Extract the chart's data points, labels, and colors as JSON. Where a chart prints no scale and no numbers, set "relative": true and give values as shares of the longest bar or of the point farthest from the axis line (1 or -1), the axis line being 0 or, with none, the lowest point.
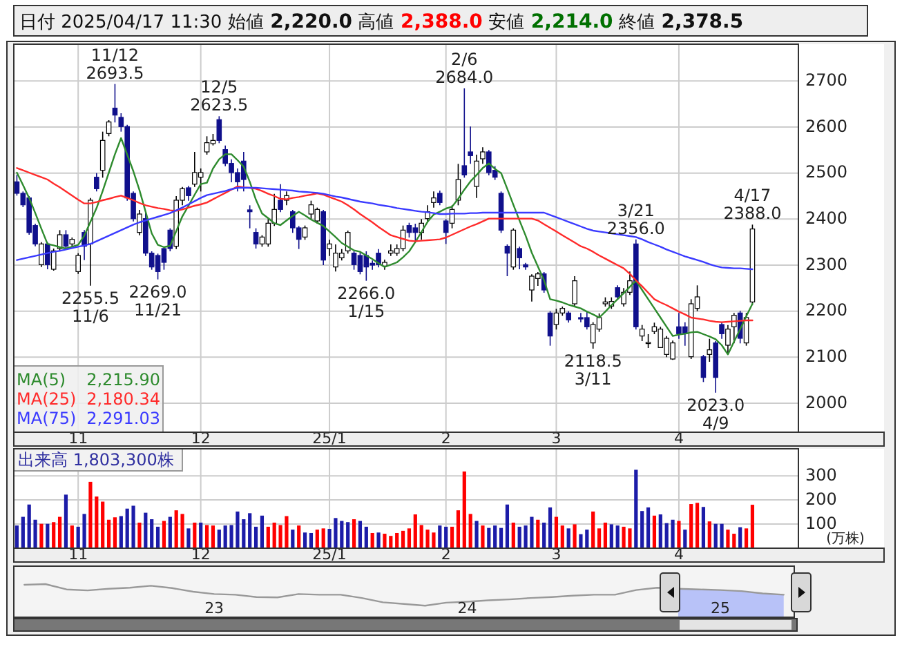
{
  "chart_data": [
    {
      "type": "candlestick",
      "title": "日付 2025/04/17 11:30 始値 2,220.0 高値 2,388.0 安値 2,214.0 終値 2,378.5",
      "grid": true,
      "legend": "bottom left",
      "colors": [
        "#10108c",
        "#10108c",
        "#10108c",
        "#10108c",
        "#ffffff",
        "#10108c",
        "#ffffff",
        "#ffffff",
        "#10108c",
        "#ffffff",
        "#ffffff",
        "#10108c",
        "#ffffff",
        "#10108c",
        "#ffffff",
        "#ffffff",
        "#10108c",
        "#10108c",
        "#10108c",
        "#10108c",
        "#ffffff",
        "#10108c",
        "#10108c",
        "#10108c",
        "#10108c",
        "#10108c",
        "#ffffff",
        "#ffffff",
        "#10108c",
        "#ffffff",
        "#ffffff",
        "#ffffff",
        "#ffffff",
        "#10108c",
        "#10108c",
        "#10108c",
        "#10108c",
        "#10108c",
        "#10108c",
        "#10108c",
        "#ffffff",
        "#ffffff",
        "#ffffff",
        "#10108c",
        "#ffffff",
        "#10108c",
        "#10108c",
        "#ffffff",
        "#ffffff",
        "#ffffff",
        "#10108c",
        "#ffffff",
        "#ffffff",
        "#ffffff",
        "#ffffff",
        "#10108c",
        "#10108c",
        "#10108c",
        "#10108c",
        "#10108c",
        "#ffffff",
        "#ffffff",
        "#ffffff",
        "#ffffff",
        "#10108c",
        "#10108c",
        "#ffffff",
        "#ffffff",
        "#ffffff",
        "#10108c",
        "#10108c",
        "#ffffff",
        "#ffffff",
        "#10108c",
        "#10108c",
        "#ffffff",
        "#ffffff",
        "#10108c",
        "#10108c",
        "#10108c",
        "#10108c",
        "#ffffff",
        "#10108c",
        "#10108c",
        "#ffffff",
        "#ffffff",
        "#10108c",
        "#10108c",
        "#ffffff",
        "#ffffff",
        "#10108c",
        "#ffffff",
        "#10108c",
        "#10108c",
        "#ffffff",
        "#ffffff",
        "#ffffff",
        "#ffffff",
        "#10108c",
        "#ffffff",
        "#ffffff",
        "#10108c",
        "#ffffff",
        "#ffffff",
        "#ffffff",
        "#ffffff",
        "#ffffff",
        "#ffffff",
        "#10108c",
        "#10108c",
        "#ffffff",
        "#ffffff",
        "#10108c",
        "#ffffff",
        "#10108c",
        "#10108c",
        "#ffffff",
        "#ffffff",
        "#10108c",
        "#ffffff",
        "#ffffff",
        null,
        null,
        null,
        null,
        null,
        null,
        null
      ],
      "categories": [
        null,
        null,
        null,
        null,
        null,
        null,
        null,
        null,
        null,
        null,
        "11",
        null,
        null,
        null,
        null,
        null,
        null,
        null,
        null,
        null,
        null,
        null,
        null,
        null,
        null,
        null,
        null,
        null,
        null,
        null,
        "12",
        null,
        null,
        null,
        null,
        null,
        null,
        null,
        null,
        null,
        null,
        null,
        null,
        null,
        null,
        null,
        null,
        null,
        null,
        null,
        null,
        "25/1",
        null,
        null,
        null,
        null,
        null,
        null,
        null,
        null,
        null,
        null,
        null,
        null,
        null,
        null,
        null,
        null,
        null,
        null,
        "2",
        null,
        null,
        null,
        null,
        null,
        null,
        null,
        null,
        null,
        null,
        null,
        null,
        null,
        null,
        null,
        null,
        null,
        "3",
        null,
        null,
        null,
        null,
        null,
        null,
        null,
        null,
        null,
        null,
        null,
        null,
        null,
        null,
        null,
        null,
        null,
        null,
        null,
        "4",
        null,
        null,
        null,
        null,
        null,
        null,
        null,
        null,
        null,
        null,
        null,
        null,
        null,
        null,
        null,
        null,
        null,
        null,
        null
      ],
      "ylim": [
        1937,
        2780
      ],
      "yticks": [
        2000,
        2100,
        2200,
        2300,
        2400,
        2500,
        2600,
        2700
      ],
      "ohlc": [
        [
          2481,
          2496,
          2451,
          2456
        ],
        [
          2456,
          2460,
          2426,
          2431
        ],
        [
          2446,
          2450,
          2366,
          2371
        ],
        [
          2386,
          2390,
          2341,
          2346
        ],
        [
          2301,
          2350,
          2296,
          2346
        ],
        [
          2346,
          2350,
          2291,
          2301
        ],
        [
          2291,
          2336,
          2288,
          2331
        ],
        [
          2336,
          2376,
          2330,
          2366
        ],
        [
          2366,
          2376,
          2336,
          2341
        ],
        [
          2346,
          2360,
          2340,
          2356
        ],
        [
          2286,
          2326,
          2281,
          2321
        ],
        [
          2371,
          2376,
          2311,
          2341
        ],
        [
          2346,
          2446,
          2255.5,
          2441
        ],
        [
          2491,
          2500,
          2460,
          2466
        ],
        [
          2506,
          2590,
          2490,
          2571
        ],
        [
          2586,
          2615,
          2580,
          2611
        ],
        [
          2641,
          2693.5,
          2610,
          2626
        ],
        [
          2621,
          2630,
          2590,
          2601
        ],
        [
          2601,
          2605,
          2440,
          2446
        ],
        [
          2456,
          2460,
          2395,
          2401
        ],
        [
          2371,
          2420,
          2365,
          2411
        ],
        [
          2401,
          2415,
          2320,
          2326
        ],
        [
          2326,
          2330,
          2290,
          2296
        ],
        [
          2321,
          2325,
          2269,
          2286
        ],
        [
          2336,
          2340,
          2290,
          2306
        ],
        [
          2376,
          2380,
          2330,
          2336
        ],
        [
          2341,
          2450,
          2335,
          2441
        ],
        [
          2441,
          2470,
          2430,
          2466
        ],
        [
          2468,
          2472,
          2440,
          2451
        ],
        [
          2476,
          2546,
          2470,
          2501
        ],
        [
          2491,
          2510,
          2460,
          2501
        ],
        [
          2546,
          2580,
          2540,
          2566
        ],
        [
          2564,
          2585,
          2560,
          2571
        ],
        [
          2616,
          2623.5,
          2565,
          2571
        ],
        [
          2551,
          2560,
          2515,
          2521
        ],
        [
          2521,
          2530,
          2480,
          2501
        ],
        [
          2501,
          2510,
          2460,
          2481
        ],
        [
          2526,
          2546,
          2460,
          2486
        ],
        [
          2420,
          2430,
          2380,
          2416
        ],
        [
          2371,
          2380,
          2336,
          2346
        ],
        [
          2346,
          2365,
          2340,
          2361
        ],
        [
          2346,
          2400,
          2340,
          2391
        ],
        [
          2391,
          2455,
          2385,
          2421
        ],
        [
          2441,
          2476,
          2415,
          2421
        ],
        [
          2441,
          2460,
          2430,
          2451
        ],
        [
          2416,
          2420,
          2370,
          2381
        ],
        [
          2381,
          2385,
          2335,
          2356
        ],
        [
          2361,
          2386,
          2355,
          2381
        ],
        [
          2411,
          2440,
          2400,
          2431
        ],
        [
          2396,
          2425,
          2390,
          2421
        ],
        [
          2416,
          2420,
          2300,
          2311
        ],
        [
          2336,
          2355,
          2320,
          2346
        ],
        [
          2296,
          2345,
          2286,
          2326
        ],
        [
          2316,
          2335,
          2310,
          2326
        ],
        [
          2331,
          2375,
          2325,
          2371
        ],
        [
          2326,
          2330,
          2290,
          2301
        ],
        [
          2321,
          2330,
          2280,
          2286
        ],
        [
          2321,
          2330,
          2266,
          2296
        ],
        [
          2304,
          2310,
          2290,
          2300
        ],
        [
          2326,
          2335,
          2295,
          2301
        ],
        [
          2298,
          2312,
          2290,
          2306
        ],
        [
          2326,
          2345,
          2320,
          2331
        ],
        [
          2326,
          2345,
          2320,
          2336
        ],
        [
          2336,
          2386,
          2330,
          2376
        ],
        [
          2386,
          2392,
          2360,
          2371
        ],
        [
          2381,
          2390,
          2350,
          2371
        ],
        [
          2371,
          2400,
          2355,
          2391
        ],
        [
          2401,
          2430,
          2395,
          2416
        ],
        [
          2436,
          2460,
          2425,
          2446
        ],
        [
          2456,
          2462,
          2430,
          2436
        ],
        [
          2396,
          2400,
          2346,
          2371
        ],
        [
          2391,
          2430,
          2380,
          2421
        ],
        [
          2441,
          2520,
          2430,
          2486
        ],
        [
          2516,
          2684,
          2490,
          2496
        ],
        [
          2546,
          2601,
          2520,
          2538
        ],
        [
          2471,
          2540,
          2446,
          2526
        ],
        [
          2531,
          2556,
          2520,
          2546
        ],
        [
          2546,
          2550,
          2495,
          2501
        ],
        [
          2506,
          2515,
          2485,
          2491
        ],
        [
          2456,
          2460,
          2370,
          2376
        ],
        [
          2341,
          2345,
          2276,
          2326
        ],
        [
          2296,
          2380,
          2290,
          2376
        ],
        [
          2336,
          2340,
          2291,
          2316
        ],
        [
          2301,
          2305,
          2290,
          2296
        ],
        [
          2246,
          2280,
          2221,
          2276
        ],
        [
          2271,
          2285,
          2255,
          2281
        ],
        [
          2281,
          2285,
          2240,
          2246
        ],
        [
          2196,
          2200,
          2125,
          2146
        ],
        [
          2171,
          2205,
          2160,
          2196
        ],
        [
          2196,
          2210,
          2190,
          2206
        ],
        [
          2196,
          2200,
          2175,
          2181
        ],
        [
          2216,
          2276,
          2210,
          2266
        ],
        [
          2186,
          2196,
          2176,
          2183
        ],
        [
          2186,
          2200,
          2160,
          2166
        ],
        [
          2131,
          2176,
          2118.5,
          2171
        ],
        [
          2161,
          2195,
          2155,
          2186
        ],
        [
          2216,
          2230,
          2210,
          2220
        ],
        [
          2211,
          2230,
          2205,
          2221
        ],
        [
          2251,
          2256,
          2225,
          2231
        ],
        [
          2216,
          2250,
          2210,
          2241
        ],
        [
          2241,
          2286,
          2235,
          2266
        ],
        [
          2346,
          2356,
          2160,
          2166
        ],
        [
          2146,
          2170,
          2135,
          2161
        ],
        [
          2130,
          2150,
          2120,
          2132
        ],
        [
          2156,
          2175,
          2150,
          2166
        ],
        [
          2121,
          2166,
          2121,
          2161
        ],
        [
          2106,
          2146,
          2100,
          2141
        ],
        [
          2096,
          2136,
          2094,
          2131
        ],
        [
          2166,
          2196,
          2140,
          2151
        ],
        [
          2166,
          2176,
          2125,
          2151
        ],
        [
          2101,
          2226,
          2096,
          2216
        ],
        [
          2206,
          2256,
          2200,
          2231
        ],
        [
          2101,
          2105,
          2046,
          2056
        ],
        [
          2106,
          2140,
          2090,
          2116
        ],
        [
          2131,
          2135,
          2023,
          2056
        ],
        [
          2171,
          2176,
          2140,
          2151
        ],
        [
          2126,
          2170,
          2106,
          2161
        ],
        [
          2166,
          2196,
          2130,
          2191
        ],
        [
          2196,
          2201,
          2130,
          2141
        ],
        [
          2131,
          2196,
          2125,
          2186
        ],
        [
          2220,
          2388,
          2214,
          2378.5
        ],
        null,
        null,
        null,
        null,
        null,
        null,
        null
      ],
      "value_labels": [
        null,
        null,
        null,
        null,
        null,
        null,
        null,
        null,
        null,
        null,
        null,
        null,
        "2255.5\n11/6",
        null,
        null,
        null,
        "11/12\n2693.5",
        null,
        null,
        null,
        null,
        null,
        null,
        "2269.0\n11/21",
        null,
        null,
        null,
        null,
        null,
        null,
        null,
        null,
        null,
        "12/5\n2623.5",
        null,
        null,
        null,
        null,
        null,
        null,
        null,
        null,
        null,
        null,
        null,
        null,
        null,
        null,
        null,
        null,
        null,
        null,
        null,
        null,
        null,
        null,
        null,
        "2266.0\n1/15",
        null,
        null,
        null,
        null,
        null,
        null,
        null,
        null,
        null,
        null,
        null,
        null,
        null,
        null,
        null,
        "2/6\n2684.0",
        null,
        null,
        null,
        null,
        null,
        null,
        null,
        null,
        null,
        null,
        null,
        null,
        null,
        null,
        null,
        null,
        null,
        null,
        null,
        null,
        "2118.5\n3/11",
        null,
        null,
        null,
        null,
        null,
        null,
        "3/21\n2356.0",
        null,
        null,
        null,
        null,
        null,
        null,
        null,
        null,
        null,
        null,
        null,
        null,
        "2023.0\n4/9",
        null,
        null,
        null,
        null,
        null,
        "4/17\n2388.0",
        null,
        null,
        null,
        null,
        null,
        null,
        null
      ],
      "series": [
        {
          "name": "MA(5)",
          "type": "line",
          "color": "#2e8b2e",
          "values": [
            2501,
            2474,
            2446,
            2413,
            2379,
            2346,
            2343,
            2339,
            2336,
            2340,
            2344,
            2364,
            2394,
            2424,
            2461,
            2501,
            2541,
            2576,
            2540,
            2504,
            2463,
            2416,
            2369,
            2344,
            2339,
            2342,
            2374,
            2406,
            2429,
            2453,
            2476,
            2479,
            2510,
            2530,
            2541,
            2541,
            2528,
            2514,
            2481,
            2442,
            2412,
            2402,
            2391,
            2387,
            2397,
            2407,
            2416,
            2408,
            2399,
            2392,
            2385,
            2373,
            2361,
            2348,
            2340,
            2332,
            2329,
            2321,
            2313,
            2304,
            2296,
            2301,
            2306,
            2317,
            2330,
            2350,
            2372,
            2394,
            2410,
            2416,
            2423,
            2427,
            2444,
            2464,
            2482,
            2496,
            2511,
            2521,
            2509,
            2500,
            2466,
            2431,
            2397,
            2364,
            2327,
            2297,
            2267,
            2226,
            2223,
            2219,
            2214,
            2210,
            2206,
            2199,
            2193,
            2186,
            2199,
            2213,
            2226,
            2239,
            2253,
            2266,
            2246,
            2226,
            2206,
            2186,
            2166,
            2146,
            2149,
            2151,
            2154,
            2155,
            2150,
            2145,
            2139,
            2126,
            2106,
            2134,
            2161,
            2189,
            2216,
            null,
            null,
            null,
            null,
            null,
            null,
            null
          ]
        },
        {
          "name": "MA(25)",
          "type": "line",
          "color": "#ff2a2a",
          "values": [
            2511,
            2506,
            2501,
            2496,
            2491,
            2486,
            2477,
            2469,
            2460,
            2451,
            2442,
            2434,
            2434,
            2437,
            2441,
            2444,
            2448,
            2451,
            2446,
            2441,
            2435,
            2430,
            2427,
            2424,
            2422,
            2419,
            2418,
            2421,
            2425,
            2429,
            2432,
            2436,
            2443,
            2450,
            2457,
            2464,
            2471,
            2469,
            2468,
            2466,
            2461,
            2455,
            2450,
            2444,
            2443,
            2446,
            2448,
            2451,
            2453,
            2456,
            2453,
            2448,
            2443,
            2438,
            2430,
            2421,
            2411,
            2402,
            2393,
            2383,
            2374,
            2365,
            2361,
            2357,
            2353,
            2352,
            2353,
            2354,
            2355,
            2356,
            2360,
            2366,
            2372,
            2378,
            2384,
            2389,
            2395,
            2401,
            2401,
            2401,
            2401,
            2401,
            2401,
            2401,
            2401,
            2397,
            2389,
            2381,
            2373,
            2365,
            2357,
            2349,
            2341,
            2336,
            2329,
            2321,
            2314,
            2307,
            2300,
            2293,
            2281,
            2267,
            2254,
            2240,
            2226,
            2219,
            2213,
            2206,
            2199,
            2193,
            2186,
            2184,
            2182,
            2179,
            2177,
            2176,
            2177,
            2178,
            2179,
            2180,
            2180,
            null,
            null,
            null,
            null,
            null,
            null,
            null
          ]
        },
        {
          "name": "MA(75)",
          "type": "line",
          "color": "#3a3aff",
          "values": [
            2311,
            2314,
            2317,
            2320,
            2323,
            2326,
            2329,
            2331,
            2334,
            2337,
            2340,
            2343,
            2346,
            2352,
            2358,
            2364,
            2370,
            2376,
            2382,
            2388,
            2393,
            2397,
            2401,
            2405,
            2409,
            2413,
            2419,
            2425,
            2432,
            2439,
            2446,
            2452,
            2455,
            2458,
            2461,
            2465,
            2468,
            2468,
            2468,
            2468,
            2467,
            2466,
            2465,
            2464,
            2463,
            2462,
            2460,
            2459,
            2458,
            2457,
            2455,
            2452,
            2449,
            2447,
            2444,
            2441,
            2438,
            2436,
            2434,
            2431,
            2429,
            2427,
            2424,
            2422,
            2420,
            2418,
            2416,
            2415,
            2413,
            2411,
            2411,
            2412,
            2412,
            2412,
            2413,
            2413,
            2414,
            2414,
            2414,
            2414,
            2414,
            2414,
            2414,
            2414,
            2414,
            2414,
            2414,
            2409,
            2404,
            2399,
            2394,
            2389,
            2384,
            2379,
            2375,
            2373,
            2371,
            2369,
            2367,
            2365,
            2363,
            2361,
            2356,
            2350,
            2345,
            2340,
            2334,
            2329,
            2324,
            2319,
            2315,
            2311,
            2307,
            2302,
            2298,
            2295,
            2294,
            2293,
            2293,
            2292,
            2291,
            null,
            null,
            null,
            null,
            null,
            null,
            null
          ]
        }
      ],
      "annotations": [
        "2,215.90",
        "2,180.34",
        "2,291.03"
      ]
    },
    {
      "type": "bar",
      "title": "出来高 1,803,300株",
      "ylabel": "(万株)",
      "grid": true,
      "categories": [
        null,
        null,
        null,
        null,
        null,
        null,
        null,
        null,
        null,
        null,
        "11",
        null,
        null,
        null,
        null,
        null,
        null,
        null,
        null,
        null,
        null,
        null,
        null,
        null,
        null,
        null,
        null,
        null,
        null,
        null,
        "12",
        null,
        null,
        null,
        null,
        null,
        null,
        null,
        null,
        null,
        null,
        null,
        null,
        null,
        null,
        null,
        null,
        null,
        null,
        null,
        null,
        "25/1",
        null,
        null,
        null,
        null,
        null,
        null,
        null,
        null,
        null,
        null,
        null,
        null,
        null,
        null,
        null,
        null,
        null,
        null,
        "2",
        null,
        null,
        null,
        null,
        null,
        null,
        null,
        null,
        null,
        null,
        null,
        null,
        null,
        null,
        null,
        null,
        null,
        "3",
        null,
        null,
        null,
        null,
        null,
        null,
        null,
        null,
        null,
        null,
        null,
        null,
        null,
        null,
        null,
        null,
        null,
        null,
        null,
        "4",
        null,
        null,
        null,
        null,
        null,
        null,
        null,
        null,
        null,
        null,
        null,
        null,
        null,
        null,
        null,
        null,
        null,
        null,
        null
      ],
      "ylim": [
        0,
        412
      ],
      "yticks": [
        100,
        200,
        300
      ],
      "values": [
        94,
        130,
        181,
        118,
        101,
        101,
        108,
        130,
        222,
        94,
        89,
        142,
        275,
        214,
        193,
        118,
        128,
        133,
        164,
        176,
        106,
        147,
        120,
        89,
        113,
        130,
        157,
        142,
        82,
        106,
        106,
        96,
        94,
        77,
        94,
        96,
        152,
        120,
        145,
        89,
        135,
        89,
        106,
        96,
        133,
        77,
        94,
        65,
        63,
        77,
        82,
        80,
        125,
        113,
        108,
        120,
        113,
        89,
        63,
        65,
        60,
        51,
        63,
        72,
        82,
        140,
        96,
        77,
        65,
        94,
        89,
        89,
        157,
        318,
        142,
        113,
        94,
        84,
        94,
        84,
        181,
        106,
        89,
        94,
        130,
        118,
        106,
        169,
        130,
        94,
        82,
        99,
        58,
        77,
        152,
        82,
        106,
        99,
        94,
        89,
        82,
        325,
        154,
        169,
        135,
        140,
        104,
        118,
        113,
        77,
        183,
        188,
        171,
        111,
        101,
        101,
        77,
        60,
        87,
        82,
        180,
        null,
        null,
        null,
        null,
        null,
        null,
        null
      ],
      "colors": [
        "#1c1ca8",
        "#1c1ca8",
        "#1c1ca8",
        "#1c1ca8",
        "#ff0000",
        "#1c1ca8",
        "#ff0000",
        "#ff0000",
        "#1c1ca8",
        "#ff0000",
        "#1c1ca8",
        "#1c1ca8",
        "#ff0000",
        "#ff0000",
        "#ff0000",
        "#ff0000",
        "#ff0000",
        "#1c1ca8",
        "#1c1ca8",
        "#1c1ca8",
        "#ff0000",
        "#1c1ca8",
        "#1c1ca8",
        "#1c1ca8",
        "#ff0000",
        "#1c1ca8",
        "#ff0000",
        "#ff0000",
        "#1c1ca8",
        "#ff0000",
        "#1c1ca8",
        "#ff0000",
        "#ff0000",
        "#1c1ca8",
        "#1c1ca8",
        "#1c1ca8",
        "#1c1ca8",
        "#1c1ca8",
        "#1c1ca8",
        "#1c1ca8",
        "#1c1ca8",
        "#ff0000",
        "#ff0000",
        "#ff0000",
        "#ff0000",
        "#1c1ca8",
        "#ff0000",
        "#1c1ca8",
        "#1c1ca8",
        "#ff0000",
        "#ff0000",
        "#1c1ca8",
        "#1c1ca8",
        "#1c1ca8",
        "#1c1ca8",
        "#ff0000",
        "#1c1ca8",
        "#1c1ca8",
        "#ff0000",
        "#1c1ca8",
        "#ff0000",
        "#ff0000",
        "#ff0000",
        "#ff0000",
        "#ff0000",
        "#ff0000",
        "#ff0000",
        "#ff0000",
        "#ff0000",
        "#1c1ca8",
        "#1c1ca8",
        "#ff0000",
        "#ff0000",
        "#ff0000",
        "#ff0000",
        "#1c1ca8",
        "#ff0000",
        "#1c1ca8",
        "#1c1ca8",
        "#1c1ca8",
        "#1c1ca8",
        "#ff0000",
        "#1c1ca8",
        "#1c1ca8",
        "#1c1ca8",
        "#ff0000",
        "#1c1ca8",
        "#1c1ca8",
        "#ff0000",
        "#ff0000",
        "#1c1ca8",
        "#ff0000",
        "#1c1ca8",
        "#1c1ca8",
        "#ff0000",
        "#ff0000",
        "#ff0000",
        "#1c1ca8",
        "#1c1ca8",
        "#ff0000",
        "#ff0000",
        "#1c1ca8",
        "#1c1ca8",
        "#1c1ca8",
        "#ff0000",
        "#1c1ca8",
        "#1c1ca8",
        "#1c1ca8",
        "#ff0000",
        "#1c1ca8",
        "#ff0000",
        "#ff0000",
        "#1c1ca8",
        "#ff0000",
        "#1c1ca8",
        "#1c1ca8",
        "#ff0000",
        "#ff0000",
        "#1c1ca8",
        "#ff0000",
        "#ff0000",
        null,
        null,
        null,
        null,
        null,
        null,
        null
      ]
    },
    {
      "type": "line",
      "relative": true,
      "tick_labels": "x",
      "categories": [
        null,
        null,
        null,
        null,
        null,
        null,
        null,
        null,
        null,
        "23",
        null,
        null,
        null,
        null,
        null,
        null,
        null,
        null,
        null,
        null,
        null,
        "24",
        null,
        null,
        null,
        null,
        null,
        null,
        null,
        null,
        null,
        null,
        null,
        "25",
        null,
        null,
        null
      ],
      "series": [
        {
          "type": "area",
          "color": "#b8c2f8",
          "values": [
            null,
            null,
            null,
            null,
            null,
            null,
            null,
            null,
            null,
            null,
            null,
            null,
            null,
            null,
            null,
            null,
            null,
            null,
            null,
            null,
            null,
            null,
            null,
            null,
            null,
            null,
            null,
            null,
            null,
            null,
            null,
            0.86,
            0.84,
            0.82,
            0.79,
            0.72,
            0.68
          ]
        },
        {
          "color": "#999999",
          "values": [
            0.98,
            1.0,
            0.84,
            0.81,
            0.86,
            0.89,
            0.95,
            0.88,
            0.77,
            0.7,
            0.68,
            0.61,
            0.6,
            0.7,
            0.68,
            0.68,
            0.58,
            0.45,
            0.4,
            0.35,
            0.44,
            0.47,
            0.51,
            0.54,
            0.58,
            0.61,
            0.65,
            0.68,
            0.68,
            0.82,
            0.89,
            0.86,
            0.84,
            0.82,
            0.79,
            0.72,
            0.68
          ]
        }
      ]
    }
  ]
}
